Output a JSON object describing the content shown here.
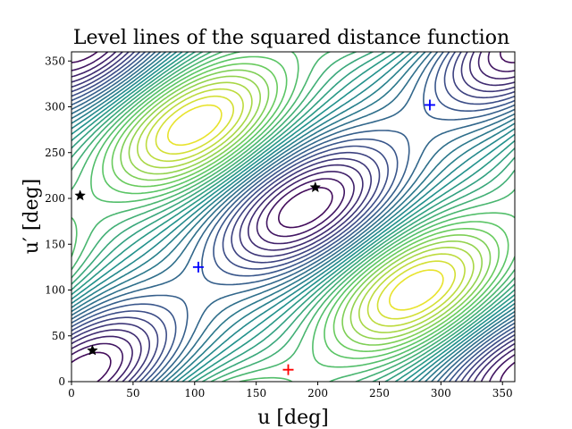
{
  "chart_data": {
    "type": "contour",
    "title": "Level lines of the squared distance function",
    "xlabel": "u [deg]",
    "ylabel": "u′ [deg]",
    "xlim": [
      0,
      360
    ],
    "ylim": [
      0,
      360
    ],
    "xticks": [
      "0",
      "50",
      "100",
      "150",
      "200",
      "250",
      "300",
      "350"
    ],
    "yticks": [
      "0",
      "50",
      "100",
      "150",
      "200",
      "250",
      "300",
      "350"
    ],
    "grid": false,
    "colormap": [
      "#440154",
      "#3b528b",
      "#21918c",
      "#5ec962",
      "#fde725"
    ],
    "markers": [
      {
        "kind": "star",
        "u": 7,
        "v": 203,
        "color": "#000000"
      },
      {
        "kind": "star",
        "u": 17,
        "v": 34,
        "color": "#000000"
      },
      {
        "kind": "star",
        "u": 198,
        "v": 212,
        "color": "#000000"
      },
      {
        "kind": "plus",
        "u": 103,
        "v": 125,
        "color": "#0000ff"
      },
      {
        "kind": "plus",
        "u": 291,
        "v": 302,
        "color": "#0000ff"
      },
      {
        "kind": "plus",
        "u": 176,
        "v": 13,
        "color": "#ff0000"
      }
    ]
  }
}
